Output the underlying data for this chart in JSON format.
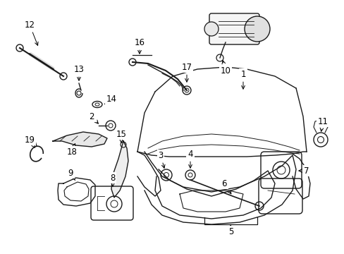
{
  "bg_color": "#ffffff",
  "line_color": "#1a1a1a",
  "label_color": "#000000",
  "label_fontsize": 8.5
}
